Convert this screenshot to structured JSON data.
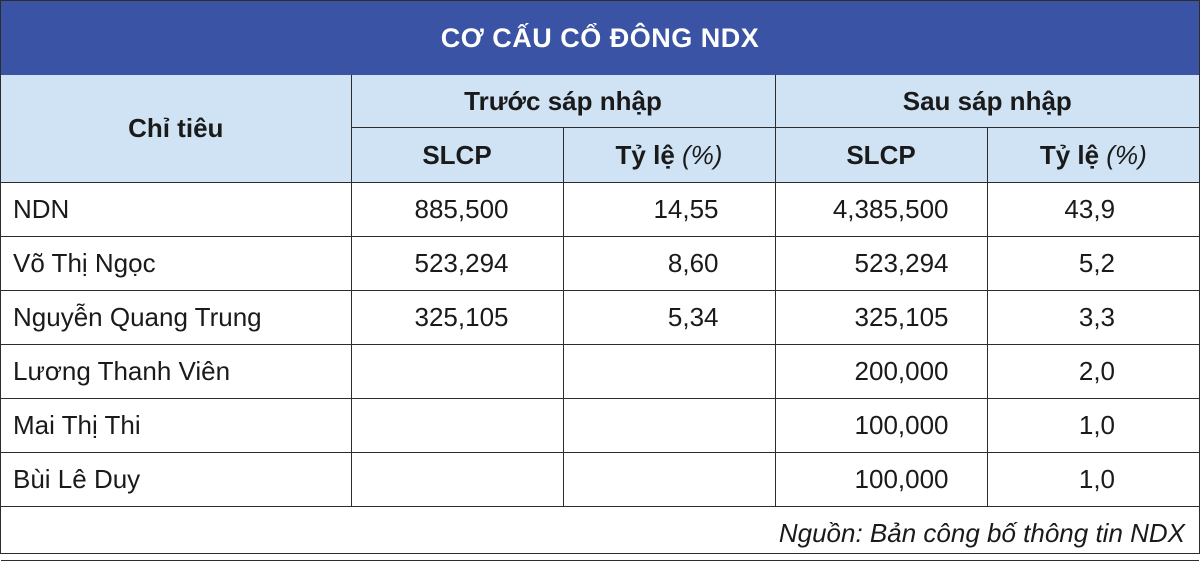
{
  "title": "CƠ CẤU CỔ ĐÔNG NDX",
  "header": {
    "criteria": "Chỉ tiêu",
    "before_group": "Trước sáp nhập",
    "after_group": "Sau sáp nhập",
    "slcp": "SLCP",
    "ratio": "Tỷ lệ",
    "ratio_unit": "(%)"
  },
  "rows": [
    {
      "name": "NDN",
      "before_slcp": "885,500",
      "before_ratio": "14,55",
      "after_slcp": "4,385,500",
      "after_ratio": "43,9"
    },
    {
      "name": "Võ Thị Ngọc",
      "before_slcp": "523,294",
      "before_ratio": "8,60",
      "after_slcp": "523,294",
      "after_ratio": "5,2"
    },
    {
      "name": "Nguyễn Quang Trung",
      "before_slcp": "325,105",
      "before_ratio": "5,34",
      "after_slcp": "325,105",
      "after_ratio": "3,3"
    },
    {
      "name": "Lương Thanh Viên",
      "before_slcp": "",
      "before_ratio": "",
      "after_slcp": "200,000",
      "after_ratio": "2,0"
    },
    {
      "name": "Mai Thị Thi",
      "before_slcp": "",
      "before_ratio": "",
      "after_slcp": "100,000",
      "after_ratio": "1,0"
    },
    {
      "name": "Bùi Lê Duy",
      "before_slcp": "",
      "before_ratio": "",
      "after_slcp": "100,000",
      "after_ratio": "1,0"
    }
  ],
  "source": "Nguồn: Bản công bố thông tin NDX",
  "colors": {
    "title_background": "#3a53a4",
    "header_background": "#cfe3f4",
    "group_header_text": "#3a53a4"
  }
}
